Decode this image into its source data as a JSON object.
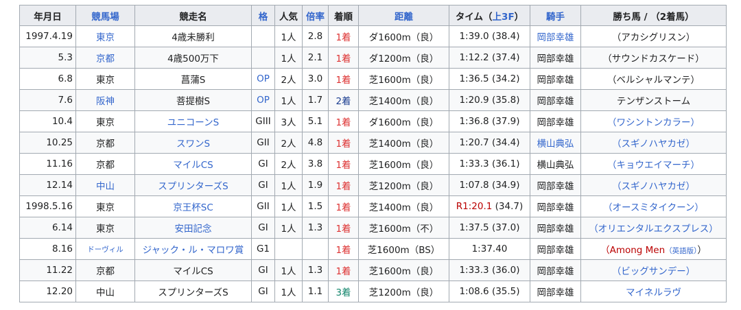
{
  "table": {
    "header": [
      [
        {
          "text": "年月日"
        }
      ],
      [
        {
          "text": "競馬場",
          "style": "link"
        }
      ],
      [
        {
          "text": "競走名"
        }
      ],
      [
        {
          "text": "格",
          "style": "link"
        }
      ],
      [
        {
          "text": "人気"
        }
      ],
      [
        {
          "text": "倍率",
          "style": "link"
        }
      ],
      [
        {
          "text": "着順"
        }
      ],
      [
        {
          "text": "距離",
          "style": "link"
        }
      ],
      [
        {
          "text": "タイム（"
        },
        {
          "text": "上3F",
          "style": "link"
        },
        {
          "text": "）"
        }
      ],
      [
        {
          "text": "騎手",
          "style": "link"
        }
      ],
      [
        {
          "text": "勝ち馬 / （2着馬）"
        }
      ]
    ],
    "rows": [
      [
        "1997.4.19",
        {
          "text": "東京",
          "style": "link"
        },
        "4歳未勝利",
        null,
        "1人",
        "2.8",
        {
          "text": "1着",
          "style": "red"
        },
        "ダ1600m（良）",
        "1:39.0 (38.4)",
        {
          "text": "岡部幸雄",
          "style": "link"
        },
        "（アカシグリスン）"
      ],
      [
        "5.3",
        {
          "text": "京都",
          "style": "link"
        },
        "4歳500万下",
        null,
        "1人",
        "2.1",
        {
          "text": "1着",
          "style": "red"
        },
        "ダ1200m（良）",
        "1:12.2 (37.4)",
        "岡部幸雄",
        "（サウンドカスケード）"
      ],
      [
        "6.8",
        "東京",
        "菖蒲S",
        {
          "text": "OP",
          "style": "link"
        },
        "2人",
        "3.0",
        {
          "text": "1着",
          "style": "red"
        },
        "芝1600m（良）",
        "1:36.5 (34.2)",
        "岡部幸雄",
        "（ベルシャルマンテ）"
      ],
      [
        "7.6",
        {
          "text": "阪神",
          "style": "link"
        },
        "菩提樹S",
        {
          "text": "OP",
          "style": "link"
        },
        "1人",
        "1.7",
        {
          "text": "2着",
          "style": "navy"
        },
        "芝1400m（良）",
        "1:20.9 (35.8)",
        "岡部幸雄",
        "テンザンストーム"
      ],
      [
        "10.4",
        "東京",
        {
          "text": "ユニコーンS",
          "style": "link"
        },
        "GIII",
        "3人",
        "5.1",
        {
          "text": "1着",
          "style": "red"
        },
        "ダ1600m（良）",
        "1:36.8 (37.9)",
        "岡部幸雄",
        {
          "text": "（ワシントンカラー）",
          "style": "link"
        }
      ],
      [
        "10.25",
        "京都",
        {
          "text": "スワンS",
          "style": "link"
        },
        "GII",
        "2人",
        "4.8",
        {
          "text": "1着",
          "style": "red"
        },
        "芝1400m（良）",
        "1:20.7 (34.4)",
        {
          "text": "横山典弘",
          "style": "link"
        },
        {
          "text": "（スギノハヤカゼ）",
          "style": "link"
        }
      ],
      [
        "11.16",
        "京都",
        {
          "text": "マイルCS",
          "style": "link"
        },
        "GI",
        "2人",
        "3.8",
        {
          "text": "1着",
          "style": "red"
        },
        "芝1600m（良）",
        "1:33.3 (36.1)",
        "横山典弘",
        {
          "text": "（キョウエイマーチ）",
          "style": "link"
        }
      ],
      [
        "12.14",
        {
          "text": "中山",
          "style": "link"
        },
        {
          "text": "スプリンターズS",
          "style": "link"
        },
        "GI",
        "1人",
        "1.9",
        {
          "text": "1着",
          "style": "red"
        },
        "芝1200m（良）",
        "1:07.8 (34.9)",
        "岡部幸雄",
        {
          "text": "（スギノハヤカゼ）",
          "style": "link"
        }
      ],
      [
        "1998.5.16",
        "東京",
        {
          "text": "京王杯SC",
          "style": "link"
        },
        "GII",
        "1人",
        "1.5",
        {
          "text": "1着",
          "style": "red"
        },
        "芝1400m（良）",
        [
          {
            "text": "R1:20.1",
            "style": "darkred"
          },
          {
            "text": " (34.7)"
          }
        ],
        "岡部幸雄",
        {
          "text": "（オースミタイクーン）",
          "style": "link"
        }
      ],
      [
        "6.14",
        "東京",
        {
          "text": "安田記念",
          "style": "link"
        },
        "GI",
        "1人",
        "1.3",
        {
          "text": "1着",
          "style": "red"
        },
        "芝1600m（不）",
        "1:37.5 (37.0)",
        "岡部幸雄",
        {
          "text": "（オリエンタルエクスプレス）",
          "style": "link"
        }
      ],
      [
        "8.16",
        {
          "text": "ドーヴィル",
          "style": "small-link"
        },
        {
          "text": "ジャック・ル・マロワ賞",
          "style": "link"
        },
        "G1",
        null,
        null,
        {
          "text": "1着",
          "style": "red"
        },
        "芝1600m（BS）",
        "1:37.40",
        "岡部幸雄",
        [
          {
            "text": "（",
            "style": "darkred"
          },
          {
            "text": "Among Men",
            "style": "darkred"
          },
          {
            "text": "（英語版）",
            "style": "small-link"
          },
          {
            "text": "）"
          }
        ]
      ],
      [
        "11.22",
        "京都",
        "マイルCS",
        "GI",
        "1人",
        "1.3",
        {
          "text": "1着",
          "style": "red"
        },
        "芝1600m（良）",
        "1:33.3 (36.0)",
        "岡部幸雄",
        {
          "text": "（ビッグサンデー）",
          "style": "link"
        }
      ],
      [
        "12.20",
        "中山",
        "スプリンターズS",
        "GI",
        "1人",
        "1.1",
        {
          "text": "3着",
          "style": "green"
        },
        "芝1200m（良）",
        "1:08.6 (35.5)",
        "岡部幸雄",
        {
          "text": "マイネルラヴ",
          "style": "link"
        }
      ]
    ]
  }
}
